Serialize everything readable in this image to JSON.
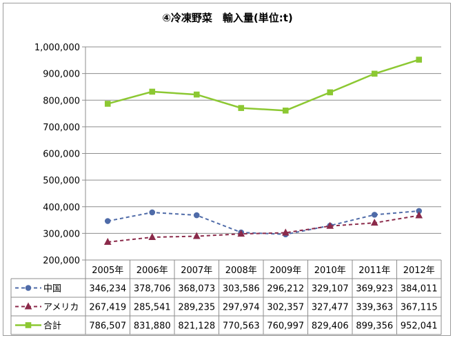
{
  "chart_data": {
    "type": "line",
    "title": "④冷凍野菜　輸入量(単位:t)",
    "categories": [
      "2005年",
      "2006年",
      "2007年",
      "2008年",
      "2009年",
      "2010年",
      "2011年",
      "2012年"
    ],
    "ylim": [
      200000,
      1000000
    ],
    "y_ticks": [
      "200,000",
      "300,000",
      "400,000",
      "500,000",
      "600,000",
      "700,000",
      "800,000",
      "900,000",
      "1,000,000"
    ],
    "grid": "horizontal",
    "legend_placement": "data-table",
    "series": [
      {
        "name": "中国",
        "color": "#4f6ba8",
        "style": "dashed",
        "marker": "circle",
        "values": [
          346234,
          378706,
          368073,
          303586,
          296212,
          329107,
          369923,
          384011
        ],
        "labels": [
          "346,234",
          "378,706",
          "368,073",
          "303,586",
          "296,212",
          "329,107",
          "369,923",
          "384,011"
        ]
      },
      {
        "name": "アメリカ",
        "color": "#8b2a4a",
        "style": "dashed",
        "marker": "triangle",
        "values": [
          267419,
          285541,
          289235,
          297974,
          302357,
          327477,
          339363,
          367115
        ],
        "labels": [
          "267,419",
          "285,541",
          "289,235",
          "297,974",
          "302,357",
          "327,477",
          "339,363",
          "367,115"
        ]
      },
      {
        "name": "合計",
        "color": "#8cc832",
        "style": "solid",
        "marker": "square",
        "values": [
          786507,
          831880,
          821128,
          770563,
          760997,
          829406,
          899356,
          952041
        ],
        "labels": [
          "786,507",
          "831,880",
          "821,128",
          "770,563",
          "760,997",
          "829,406",
          "899,356",
          "952,041"
        ]
      }
    ]
  }
}
